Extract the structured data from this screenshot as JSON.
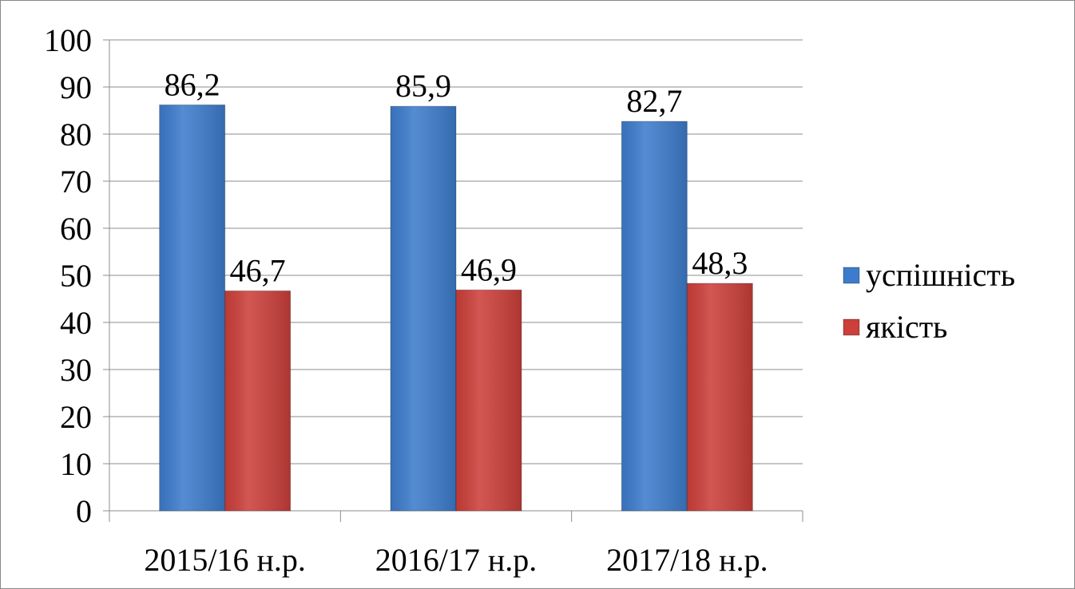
{
  "chart_data": {
    "type": "bar",
    "categories": [
      "2015/16 н.р.",
      "2016/17 н.р.",
      "2017/18 н.р."
    ],
    "series": [
      {
        "name": "успішність",
        "color": "#3d7ccc",
        "values": [
          86.2,
          85.9,
          82.7
        ],
        "value_labels": [
          "86,2",
          "85,9",
          "82,7"
        ]
      },
      {
        "name": "якість",
        "color": "#cc3f3a",
        "values": [
          46.7,
          46.9,
          48.3
        ],
        "value_labels": [
          "46,7",
          "46,9",
          "48,3"
        ]
      }
    ],
    "ylim": [
      0,
      100
    ],
    "yticks": [
      0,
      10,
      20,
      30,
      40,
      50,
      60,
      70,
      80,
      90,
      100
    ],
    "grid": true,
    "legend": "right"
  }
}
